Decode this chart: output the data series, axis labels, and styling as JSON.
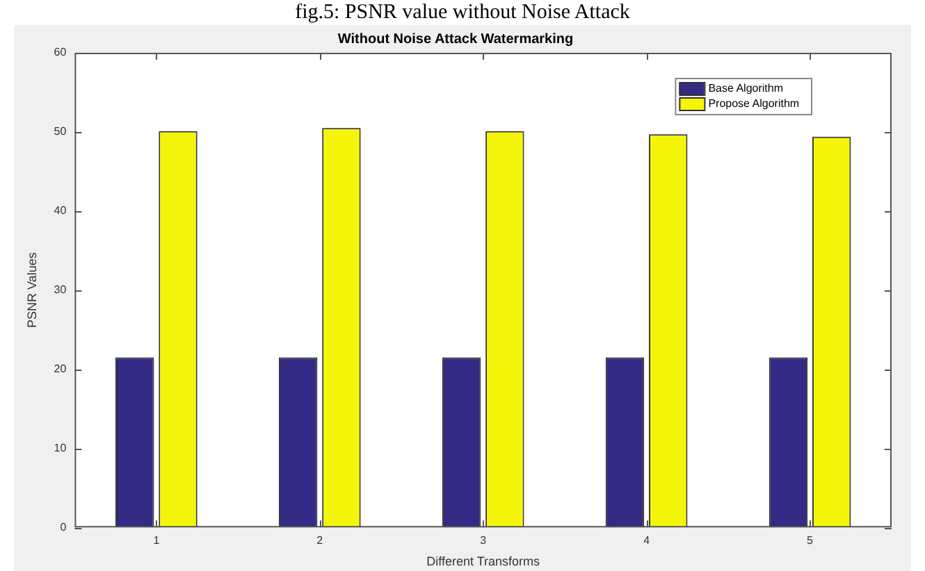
{
  "chart_data": {
    "type": "bar",
    "title": "Without Noise Attack Watermarking",
    "xlabel": "Different Transforms",
    "ylabel": "PSNR Values",
    "annotations": [
      "fig.5: PSNR value without Noise Attack"
    ],
    "categories": [
      "1",
      "2",
      "3",
      "4",
      "5"
    ],
    "series": [
      {
        "name": "Base Algorithm",
        "color": "#332a85",
        "values": [
          21.5,
          21.5,
          21.5,
          21.5,
          21.5
        ]
      },
      {
        "name": "Propose Algorithm",
        "color": "#f5f50a",
        "values": [
          50.1,
          50.5,
          50.1,
          49.7,
          49.4
        ]
      }
    ],
    "ylim": [
      0,
      60
    ],
    "yticks": [
      0,
      10,
      20,
      30,
      40,
      50,
      60
    ],
    "grid": false,
    "legend": "top right"
  }
}
